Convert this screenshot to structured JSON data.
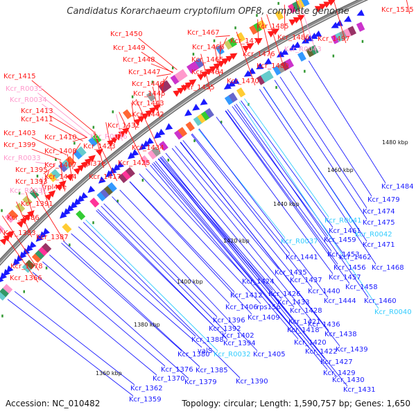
{
  "title": "Candidatus Korarchaeum cryptofilum OPF8, complete genome",
  "accession": "Accession: NC_010482",
  "summary": "Topology: circular; Length: 1,590,757 bp; Genes: 1,650",
  "colors": {
    "forward": "#ff1a1a",
    "reverse": "#1a1aff",
    "forward_rna": "#ff99cc",
    "reverse_rna": "#33ccff",
    "backbone": "#8a8a8a"
  },
  "ticks": [
    "1360 kbp",
    "1380 kbp",
    "1400 kbp",
    "1420 kbp",
    "1440 kbp",
    "1460 kbp",
    "1480 kbp"
  ],
  "labels": [
    {
      "text": "Kcr_1515",
      "c": "forward"
    },
    {
      "text": "Kcr_1485",
      "c": "forward"
    },
    {
      "text": "Kcr_1486",
      "c": "forward"
    },
    {
      "text": "Kcr_1467",
      "c": "forward"
    },
    {
      "text": "Kcr_1477",
      "c": "forward"
    },
    {
      "text": "Kcr_R0043",
      "c": "forward_rna"
    },
    {
      "text": "Kcr_1497",
      "c": "forward"
    },
    {
      "text": "Kcr_1450",
      "c": "forward"
    },
    {
      "text": "Kcr_1466",
      "c": "forward"
    },
    {
      "text": "Kcr_1476",
      "c": "forward"
    },
    {
      "text": "Kcr_1449",
      "c": "forward"
    },
    {
      "text": "Kcr_1465",
      "c": "forward"
    },
    {
      "text": "Kcr_1480",
      "c": "forward"
    },
    {
      "text": "Kcr_1448",
      "c": "forward"
    },
    {
      "text": "Kcr_1447",
      "c": "forward"
    },
    {
      "text": "Kcr_1464",
      "c": "forward"
    },
    {
      "text": "Kcr_1415",
      "c": "forward"
    },
    {
      "text": "Kcr_1446",
      "c": "forward"
    },
    {
      "text": "Kcr_1470",
      "c": "forward"
    },
    {
      "text": "Kcr_1455",
      "c": "forward"
    },
    {
      "text": "Kcr_R0035",
      "c": "forward_rna"
    },
    {
      "text": "Kcr_1445",
      "c": "forward"
    },
    {
      "text": "Kcr_R0034",
      "c": "forward_rna"
    },
    {
      "text": "Kcr_1443",
      "c": "forward"
    },
    {
      "text": "Kcr_1413",
      "c": "forward"
    },
    {
      "text": "Kcr_1442",
      "c": "forward"
    },
    {
      "text": "Kcr_1411",
      "c": "forward"
    },
    {
      "text": "Kcr_1432",
      "c": "forward"
    },
    {
      "text": "Kcr_1403",
      "c": "forward"
    },
    {
      "text": "Kcr_R0036",
      "c": "forward_rna"
    },
    {
      "text": "Kcr_1410",
      "c": "forward"
    },
    {
      "text": "Kcr_1399",
      "c": "forward"
    },
    {
      "text": "Kcr_1423",
      "c": "forward"
    },
    {
      "text": "Kcr_1434",
      "c": "forward"
    },
    {
      "text": "Kcr_1408",
      "c": "forward"
    },
    {
      "text": "Kcr_R0033",
      "c": "forward_rna"
    },
    {
      "text": "rpl37e",
      "c": "forward"
    },
    {
      "text": "Kcr_1425",
      "c": "forward"
    },
    {
      "text": "Kcr_1407",
      "c": "forward"
    },
    {
      "text": "Kcr_1395",
      "c": "forward"
    },
    {
      "text": "Kcr_1404",
      "c": "forward"
    },
    {
      "text": "Kcr_1417",
      "c": "forward"
    },
    {
      "text": "Kcr_1393",
      "c": "forward"
    },
    {
      "text": "rpl40e",
      "c": "forward"
    },
    {
      "text": "Kcr_R0031",
      "c": "forward_rna"
    },
    {
      "text": "Kcr_1391",
      "c": "forward"
    },
    {
      "text": "Kcr_1386",
      "c": "forward"
    },
    {
      "text": "Kcr_1387",
      "c": "forward"
    },
    {
      "text": "Kcr_1383",
      "c": "forward"
    },
    {
      "text": "Kcr_1378",
      "c": "forward"
    },
    {
      "text": "Kcr_1366",
      "c": "forward"
    },
    {
      "text": "Kcr_1484",
      "c": "reverse"
    },
    {
      "text": "Kcr_1479",
      "c": "reverse"
    },
    {
      "text": "Kcr_1474",
      "c": "reverse"
    },
    {
      "text": "Kcr_R0041",
      "c": "reverse_rna"
    },
    {
      "text": "Kcr_1475",
      "c": "reverse"
    },
    {
      "text": "Kcr_1461",
      "c": "reverse"
    },
    {
      "text": "Kcr_R0042",
      "c": "reverse_rna"
    },
    {
      "text": "Kcr_1459",
      "c": "reverse"
    },
    {
      "text": "Kcr_1471",
      "c": "reverse"
    },
    {
      "text": "Kcr_R0037",
      "c": "reverse_rna"
    },
    {
      "text": "Kcr_1453",
      "c": "reverse"
    },
    {
      "text": "Kcr_1462",
      "c": "reverse"
    },
    {
      "text": "Kcr_1441",
      "c": "reverse"
    },
    {
      "text": "Kcr_1456",
      "c": "reverse"
    },
    {
      "text": "Kcr_1468",
      "c": "reverse"
    },
    {
      "text": "Kcr_1435",
      "c": "reverse"
    },
    {
      "text": "Kcr_1457",
      "c": "reverse"
    },
    {
      "text": "Kcr_1424",
      "c": "reverse"
    },
    {
      "text": "Kcr_1437",
      "c": "reverse"
    },
    {
      "text": "Kcr_1458",
      "c": "reverse"
    },
    {
      "text": "Kcr_1412",
      "c": "reverse"
    },
    {
      "text": "Kcr_1426",
      "c": "reverse"
    },
    {
      "text": "Kcr_1440",
      "c": "reverse"
    },
    {
      "text": "Kcr_1433",
      "c": "reverse"
    },
    {
      "text": "Kcr_1444",
      "c": "reverse"
    },
    {
      "text": "Kcr_1460",
      "c": "reverse"
    },
    {
      "text": "Kcr_1406",
      "c": "reverse"
    },
    {
      "text": "rps15p",
      "c": "reverse"
    },
    {
      "text": "Kcr_1428",
      "c": "reverse"
    },
    {
      "text": "Kcr_R0040",
      "c": "reverse_rna"
    },
    {
      "text": "Kcr_1396",
      "c": "reverse"
    },
    {
      "text": "Kcr_1409",
      "c": "reverse"
    },
    {
      "text": "Kcr_1421",
      "c": "reverse"
    },
    {
      "text": "Kcr_1436",
      "c": "reverse"
    },
    {
      "text": "Kcr_1392",
      "c": "reverse"
    },
    {
      "text": "Kcr_1418",
      "c": "reverse"
    },
    {
      "text": "Kcr_1438",
      "c": "reverse"
    },
    {
      "text": "Kcr_1402",
      "c": "reverse"
    },
    {
      "text": "Kcr_1388",
      "c": "reverse"
    },
    {
      "text": "Kcr_1394",
      "c": "reverse"
    },
    {
      "text": "Kcr_1420",
      "c": "reverse"
    },
    {
      "text": "Kcr_1439",
      "c": "reverse"
    },
    {
      "text": "Kcr_1380",
      "c": "reverse"
    },
    {
      "text": "valS",
      "c": "reverse"
    },
    {
      "text": "Kcr_R0032",
      "c": "reverse_rna"
    },
    {
      "text": "Kcr_1405",
      "c": "reverse"
    },
    {
      "text": "Kcr_1422",
      "c": "reverse"
    },
    {
      "text": "Kcr_1427",
      "c": "reverse"
    },
    {
      "text": "Kcr_1376",
      "c": "reverse"
    },
    {
      "text": "Kcr_1385",
      "c": "reverse"
    },
    {
      "text": "Kcr_1429",
      "c": "reverse"
    },
    {
      "text": "Kcr_1370",
      "c": "reverse"
    },
    {
      "text": "Kcr_1379",
      "c": "reverse"
    },
    {
      "text": "Kcr_1390",
      "c": "reverse"
    },
    {
      "text": "Kcr_1430",
      "c": "reverse"
    },
    {
      "text": "Kcr_1362",
      "c": "reverse"
    },
    {
      "text": "Kcr_1431",
      "c": "reverse"
    },
    {
      "text": "Kcr_1359",
      "c": "reverse"
    }
  ]
}
